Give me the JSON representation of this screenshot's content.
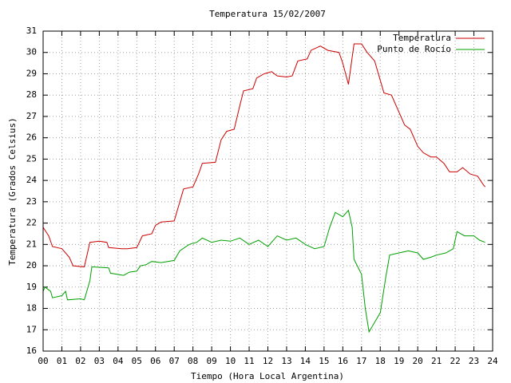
{
  "chart_data": {
    "type": "line",
    "title": "Temperatura 15/02/2007",
    "xlabel": "Tiempo (Hora Local Argentina)",
    "ylabel": "Temperatura (Grados Celsius)",
    "xlim": [
      0,
      24
    ],
    "ylim": [
      16,
      31
    ],
    "xticks": [
      {
        "value": 0,
        "label": "00"
      },
      {
        "value": 1,
        "label": "01"
      },
      {
        "value": 2,
        "label": "02"
      },
      {
        "value": 3,
        "label": "03"
      },
      {
        "value": 4,
        "label": "04"
      },
      {
        "value": 5,
        "label": "05"
      },
      {
        "value": 6,
        "label": "06"
      },
      {
        "value": 7,
        "label": "07"
      },
      {
        "value": 8,
        "label": "08"
      },
      {
        "value": 9,
        "label": "09"
      },
      10,
      11,
      12,
      13,
      14,
      15,
      16,
      17,
      18,
      19,
      20,
      21,
      22,
      23,
      24
    ],
    "yticks": [
      16,
      17,
      18,
      19,
      20,
      21,
      22,
      23,
      24,
      25,
      26,
      27,
      28,
      29,
      30,
      31
    ],
    "grid": true,
    "legend": "top-right",
    "series": [
      {
        "name": "Temperatura",
        "color": "#cc0000",
        "x": [
          0,
          0.3,
          0.5,
          1,
          1.4,
          1.6,
          2.2,
          2.5,
          3,
          3.4,
          3.5,
          4.2,
          4.5,
          5,
          5.3,
          5.8,
          6,
          6.3,
          7,
          7.3,
          7.5,
          8,
          8.3,
          8.5,
          9.2,
          9.5,
          9.8,
          10.2,
          10.5,
          10.7,
          11.2,
          11.4,
          11.8,
          12.2,
          12.5,
          13,
          13.3,
          13.6,
          14.1,
          14.3,
          14.8,
          15.2,
          15.8,
          16,
          16.3,
          16.6,
          17,
          17.3,
          17.7,
          17.9,
          18.2,
          18.6,
          19,
          19.3,
          19.6,
          20,
          20.3,
          20.7,
          21,
          21.4,
          21.7,
          22.1,
          22.4,
          22.8,
          23.2,
          23.5,
          23.6
        ],
        "values": [
          21.8,
          21.4,
          20.9,
          20.8,
          20.4,
          20,
          19.95,
          21.1,
          21.15,
          21.1,
          20.85,
          20.8,
          20.8,
          20.85,
          21.4,
          21.5,
          21.9,
          22.05,
          22.1,
          23,
          23.6,
          23.7,
          24.3,
          24.8,
          24.85,
          25.9,
          26.3,
          26.4,
          27.5,
          28.2,
          28.3,
          28.8,
          29,
          29.1,
          28.9,
          28.85,
          28.9,
          29.6,
          29.7,
          30.1,
          30.3,
          30.1,
          30,
          29.5,
          28.5,
          30.4,
          30.4,
          30,
          29.6,
          29,
          28.1,
          28,
          27.2,
          26.6,
          26.4,
          25.6,
          25.3,
          25.1,
          25.1,
          24.8,
          24.4,
          24.4,
          24.6,
          24.3,
          24.2,
          23.8,
          23.7
        ]
      },
      {
        "name": "Punto de Rocío",
        "color": "#00a000",
        "x": [
          0,
          0.1,
          0.4,
          0.5,
          1,
          1.2,
          1.3,
          2,
          2.2,
          2.5,
          2.6,
          3.5,
          3.6,
          4.3,
          4.6,
          5,
          5.2,
          5.5,
          5.8,
          6.3,
          7,
          7.3,
          7.8,
          8.2,
          8.5,
          9,
          9.5,
          10,
          10.5,
          11,
          11.5,
          12,
          12.5,
          13,
          13.5,
          14,
          14.5,
          15,
          15.3,
          15.6,
          16,
          16.3,
          16.5,
          16.6,
          17,
          17.2,
          17.4,
          17.6,
          18,
          18.3,
          18.5,
          19,
          19.5,
          20,
          20.3,
          20.7,
          21,
          21.5,
          21.9,
          22.1,
          22.5,
          23,
          23.3,
          23.6
        ],
        "values": [
          18.8,
          19,
          18.8,
          18.5,
          18.6,
          18.8,
          18.4,
          18.45,
          18.4,
          19.3,
          19.95,
          19.9,
          19.65,
          19.55,
          19.7,
          19.75,
          20,
          20.05,
          20.2,
          20.15,
          20.25,
          20.7,
          21,
          21.1,
          21.3,
          21.1,
          21.2,
          21.15,
          21.3,
          21,
          21.2,
          20.9,
          21.4,
          21.2,
          21.3,
          21,
          20.8,
          20.9,
          21.8,
          22.5,
          22.3,
          22.6,
          21.8,
          20.3,
          19.6,
          18,
          16.9,
          17.2,
          17.8,
          19.5,
          20.5,
          20.6,
          20.7,
          20.6,
          20.3,
          20.4,
          20.5,
          20.6,
          20.8,
          21.6,
          21.4,
          21.4,
          21.2,
          21.1
        ]
      }
    ]
  }
}
